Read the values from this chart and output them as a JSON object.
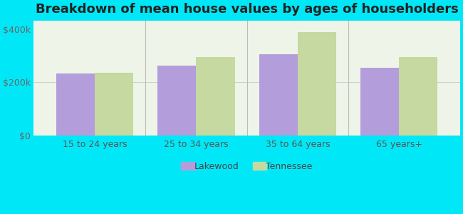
{
  "title": "Breakdown of mean house values by ages of householders",
  "categories": [
    "15 to 24 years",
    "25 to 34 years",
    "35 to 64 years",
    "65 years+"
  ],
  "lakewood_values": [
    232000,
    262000,
    305000,
    255000
  ],
  "tennessee_values": [
    235000,
    295000,
    388000,
    295000
  ],
  "lakewood_color": "#b39ddb",
  "tennessee_color": "#c5d9a0",
  "background_color": "#00e8f8",
  "yticks": [
    0,
    200000,
    400000
  ],
  "ytick_labels": [
    "$0",
    "$200k",
    "$400k"
  ],
  "ylim": [
    0,
    430000
  ],
  "bar_width": 0.38,
  "legend_lakewood": "Lakewood",
  "legend_tennessee": "Tennessee",
  "title_fontsize": 13,
  "tick_fontsize": 9,
  "legend_fontsize": 9,
  "title_color": "#222222"
}
